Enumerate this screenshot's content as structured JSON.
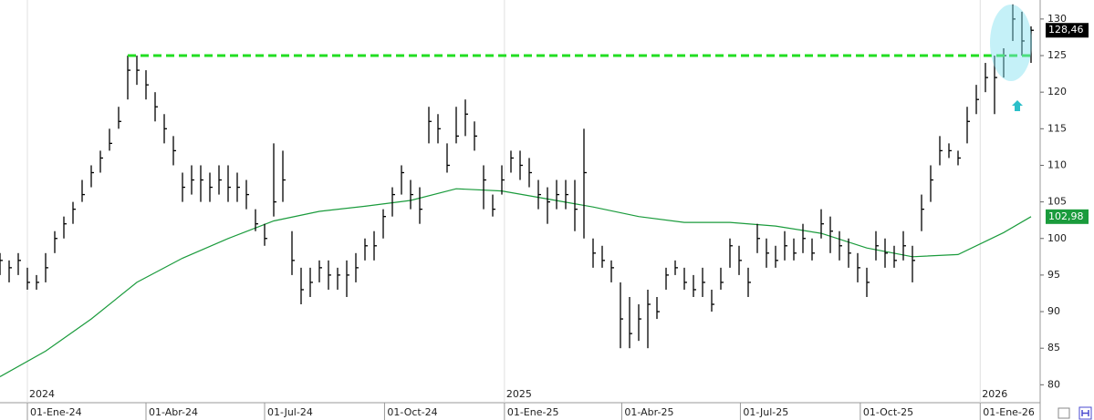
{
  "chart_data": {
    "type": "ohlc",
    "color": "#000000",
    "x": [
      "2023-12-11",
      "2023-12-18",
      "2023-12-25",
      "2024-01-01",
      "2024-01-08",
      "2024-01-15",
      "2024-01-22",
      "2024-01-29",
      "2024-02-05",
      "2024-02-12",
      "2024-02-19",
      "2024-02-26",
      "2024-03-04",
      "2024-03-11",
      "2024-03-18",
      "2024-03-25",
      "2024-04-01",
      "2024-04-08",
      "2024-04-15",
      "2024-04-22",
      "2024-04-29",
      "2024-05-06",
      "2024-05-13",
      "2024-05-20",
      "2024-05-27",
      "2024-06-03",
      "2024-06-10",
      "2024-06-17",
      "2024-06-24",
      "2024-07-01",
      "2024-07-08",
      "2024-07-15",
      "2024-07-22",
      "2024-07-29",
      "2024-08-05",
      "2024-08-12",
      "2024-08-19",
      "2024-08-26",
      "2024-09-02",
      "2024-09-09",
      "2024-09-16",
      "2024-09-23",
      "2024-09-30",
      "2024-10-07",
      "2024-10-14",
      "2024-10-21",
      "2024-10-28",
      "2024-11-04",
      "2024-11-11",
      "2024-11-18",
      "2024-11-25",
      "2024-12-02",
      "2024-12-09",
      "2024-12-16",
      "2024-12-23",
      "2024-12-30",
      "2025-01-06",
      "2025-01-13",
      "2025-01-20",
      "2025-01-27",
      "2025-02-03",
      "2025-02-10",
      "2025-02-17",
      "2025-02-24",
      "2025-03-03",
      "2025-03-10",
      "2025-03-17",
      "2025-03-24",
      "2025-03-31",
      "2025-04-07",
      "2025-04-14",
      "2025-04-21",
      "2025-04-28",
      "2025-05-05",
      "2025-05-12",
      "2025-05-19",
      "2025-05-26",
      "2025-06-02",
      "2025-06-09",
      "2025-06-16",
      "2025-06-23",
      "2025-06-30",
      "2025-07-07",
      "2025-07-14",
      "2025-07-21",
      "2025-07-28",
      "2025-08-04",
      "2025-08-11",
      "2025-08-18",
      "2025-08-25",
      "2025-09-01",
      "2025-09-08",
      "2025-09-15",
      "2025-09-22",
      "2025-09-29",
      "2025-10-06",
      "2025-10-13",
      "2025-10-20",
      "2025-10-27",
      "2025-11-03",
      "2025-11-10",
      "2025-11-17",
      "2025-11-24",
      "2025-12-01",
      "2025-12-08",
      "2025-12-15",
      "2025-12-22",
      "2025-12-29",
      "2026-01-05",
      "2026-01-12",
      "2026-01-19",
      "2026-01-26",
      "2026-02-02",
      "2026-02-09"
    ],
    "high": [
      98,
      97,
      98,
      96,
      95,
      98,
      101,
      103,
      105,
      108,
      110,
      112,
      115,
      118,
      125,
      125,
      123,
      120,
      117,
      114,
      109,
      110,
      110,
      109,
      110,
      110,
      109,
      108,
      104,
      102,
      113,
      112,
      101,
      96,
      96,
      97,
      97,
      96,
      97,
      98,
      100,
      101,
      104,
      107,
      110,
      108,
      107,
      118,
      117,
      113,
      118,
      119,
      116,
      110,
      106,
      110,
      112,
      112,
      111,
      108,
      107,
      108,
      108,
      108,
      115,
      100,
      99,
      97,
      94,
      92,
      91,
      93,
      92,
      96,
      97,
      96,
      95,
      96,
      93,
      96,
      100,
      99,
      96,
      102,
      100,
      99,
      101,
      100,
      102,
      100,
      104,
      103,
      101,
      100,
      98,
      96,
      101,
      100,
      99,
      101,
      99,
      106,
      110,
      114,
      113,
      112,
      118,
      121,
      124,
      125,
      126,
      132,
      131,
      129
    ],
    "low": [
      95,
      94,
      95,
      93,
      93,
      94,
      98,
      100,
      102,
      105,
      107,
      109,
      112,
      115,
      119,
      121,
      119,
      116,
      113,
      110,
      105,
      106,
      105,
      105,
      106,
      105,
      105,
      104,
      101,
      99,
      103,
      105,
      95,
      91,
      92,
      94,
      93,
      93,
      92,
      94,
      97,
      97,
      100,
      103,
      106,
      104,
      102,
      113,
      113,
      109,
      113,
      114,
      112,
      104,
      103,
      106,
      109,
      108,
      107,
      104,
      102,
      104,
      104,
      101,
      100,
      96,
      96,
      94,
      85,
      85,
      86,
      85,
      89,
      93,
      95,
      93,
      92,
      92,
      90,
      93,
      96,
      95,
      92,
      98,
      96,
      96,
      97,
      97,
      98,
      97,
      100,
      98,
      97,
      96,
      94,
      92,
      97,
      96,
      96,
      97,
      94,
      101,
      105,
      110,
      111,
      110,
      113,
      117,
      120,
      117,
      122,
      127,
      125,
      124
    ],
    "close": [
      97,
      96,
      97,
      94,
      94,
      96,
      100,
      102,
      104,
      106,
      109,
      111,
      113,
      116,
      123,
      123,
      121,
      118,
      115,
      112,
      107,
      108,
      108,
      107,
      108,
      107,
      107,
      106,
      102,
      100,
      105,
      108,
      97,
      93,
      94,
      96,
      95,
      95,
      95,
      96,
      99,
      99,
      103,
      106,
      109,
      106,
      104,
      116,
      115,
      110,
      114,
      117,
      114,
      108,
      104,
      108,
      111,
      110,
      109,
      106,
      105,
      106,
      106,
      104,
      109,
      98,
      97,
      96,
      89,
      87,
      89,
      91,
      90,
      95,
      96,
      94,
      93,
      94,
      91,
      94,
      99,
      97,
      94,
      100,
      98,
      97,
      99,
      98,
      100,
      98,
      102,
      101,
      99,
      98,
      96,
      94,
      99,
      98,
      97,
      99,
      97,
      104,
      108,
      112,
      112,
      111,
      116,
      119,
      122,
      122,
      125,
      130,
      127,
      128.46
    ],
    "last_value": {
      "value": 128.46,
      "label": "128,46"
    },
    "moving_average": {
      "color": "#1a9b3c",
      "x": [
        "2023-12-11",
        "2024-01-15",
        "2024-02-19",
        "2024-03-25",
        "2024-04-29",
        "2024-06-03",
        "2024-07-08",
        "2024-08-12",
        "2024-09-16",
        "2024-10-21",
        "2024-11-25",
        "2024-12-30",
        "2025-02-03",
        "2025-03-10",
        "2025-04-14",
        "2025-05-19",
        "2025-06-23",
        "2025-07-28",
        "2025-09-01",
        "2025-10-06",
        "2025-11-10",
        "2025-12-15",
        "2026-01-19",
        "2026-02-09"
      ],
      "values": [
        81.1,
        84.6,
        89,
        94,
        97.3,
        100,
        102.4,
        103.7,
        104.4,
        105.2,
        106.8,
        106.5,
        105.4,
        104.3,
        103,
        102.2,
        102.2,
        101.7,
        100.7,
        98.7,
        97.5,
        97.8,
        100.8,
        102.98
      ],
      "last_value": {
        "value": 102.98,
        "label": "102,98"
      }
    },
    "resistance": {
      "value": 125,
      "from": "2024-03-18",
      "color": "#22dd22"
    },
    "xlim": [
      "2023-12-11",
      "2026-02-16"
    ],
    "ylim": [
      77.8,
      132.6
    ],
    "yticks": [
      80,
      85,
      90,
      95,
      100,
      105,
      110,
      115,
      120,
      125,
      130
    ],
    "xticks": [
      {
        "value": "2024-01-01",
        "label": "01-Ene-24"
      },
      {
        "value": "2024-04-01",
        "label": "01-Abr-24"
      },
      {
        "value": "2024-07-01",
        "label": "01-Jul-24"
      },
      {
        "value": "2024-10-01",
        "label": "01-Oct-24"
      },
      {
        "value": "2025-01-01",
        "label": "01-Ene-25"
      },
      {
        "value": "2025-04-01",
        "label": "01-Abr-25"
      },
      {
        "value": "2025-07-01",
        "label": "01-Jul-25"
      },
      {
        "value": "2025-10-01",
        "label": "01-Oct-25"
      },
      {
        "value": "2026-01-01",
        "label": "01-Ene-26"
      }
    ],
    "year_ticks": [
      {
        "value": "2024-01-01",
        "label": "2024"
      },
      {
        "value": "2025-01-01",
        "label": "2025"
      },
      {
        "value": "2026-01-01",
        "label": "2026"
      }
    ]
  }
}
